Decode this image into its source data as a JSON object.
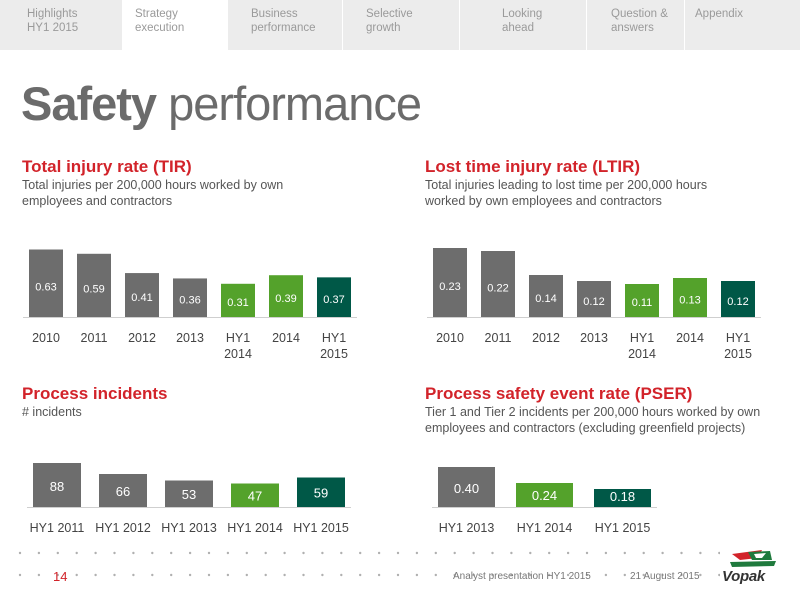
{
  "tabs": [
    {
      "label": "Highlights\nHY1 2015",
      "active": false
    },
    {
      "label": "Strategy\nexecution",
      "active": true
    },
    {
      "label": "Business\nperformance",
      "active": false
    },
    {
      "label": "Selective\ngrowth",
      "active": false
    },
    {
      "label": "Looking\nahead",
      "active": false
    },
    {
      "label": "Question &\nanswers",
      "active": false
    },
    {
      "label": "Appendix",
      "active": false
    }
  ],
  "title": {
    "bold": "Safety",
    "rest": " performance"
  },
  "colors": {
    "grey": "#6d6d6d",
    "green": "#54a22b",
    "teal": "#005847",
    "red": "#d2232a"
  },
  "sections": {
    "tir": {
      "title": "Total injury rate (TIR)",
      "subtitle": "Total injuries per 200,000 hours worked by own employees and contractors"
    },
    "ltir": {
      "title": "Lost time injury rate (LTIR)",
      "subtitle": "Total injuries leading to lost time per 200,000 hours worked by own employees and contractors"
    },
    "pi": {
      "title": "Process incidents",
      "subtitle": "# incidents"
    },
    "pser": {
      "title": "Process safety event rate (PSER)",
      "subtitle": "Tier 1 and Tier 2 incidents per 200,000 hours worked by own employees and contractors (excluding greenfield projects)"
    }
  },
  "chart_data": [
    {
      "id": "tir",
      "type": "bar",
      "categories": [
        "2010",
        "2011",
        "2012",
        "2013",
        "HY1\n2014",
        "2014",
        "HY1\n2015"
      ],
      "values": [
        0.63,
        0.59,
        0.41,
        0.36,
        0.31,
        0.39,
        0.37
      ],
      "labels": [
        "0.63",
        "0.59",
        "0.41",
        "0.36",
        "0.31",
        "0.39",
        "0.37"
      ],
      "colors": [
        "grey",
        "grey",
        "grey",
        "grey",
        "green",
        "green",
        "teal"
      ],
      "ylim": [
        0,
        0.7
      ]
    },
    {
      "id": "ltir",
      "type": "bar",
      "categories": [
        "2010",
        "2011",
        "2012",
        "2013",
        "HY1\n2014",
        "2014",
        "HY1\n2015"
      ],
      "values": [
        0.23,
        0.22,
        0.14,
        0.12,
        0.11,
        0.13,
        0.12
      ],
      "labels": [
        "0.23",
        "0.22",
        "0.14",
        "0.12",
        "0.11",
        "0.13",
        "0.12"
      ],
      "colors": [
        "grey",
        "grey",
        "grey",
        "grey",
        "green",
        "green",
        "teal"
      ],
      "ylim": [
        0,
        0.25
      ]
    },
    {
      "id": "pi",
      "type": "bar",
      "categories": [
        "HY1 2011",
        "HY1 2012",
        "HY1 2013",
        "HY1 2014",
        "HY1 2015"
      ],
      "values": [
        88,
        66,
        53,
        47,
        59
      ],
      "labels": [
        "88",
        "66",
        "53",
        "47",
        "59"
      ],
      "colors": [
        "grey",
        "grey",
        "grey",
        "green",
        "teal"
      ],
      "ylim": [
        0,
        100
      ]
    },
    {
      "id": "pser",
      "type": "bar",
      "categories": [
        "HY1 2013",
        "HY1 2014",
        "HY1 2015"
      ],
      "values": [
        0.4,
        0.24,
        0.18
      ],
      "labels": [
        "0.40",
        "0.24",
        "0.18"
      ],
      "colors": [
        "grey",
        "green",
        "teal"
      ],
      "ylim": [
        0,
        0.45
      ]
    }
  ],
  "footer": {
    "page": "14",
    "presentation": "Analyst presentation HY1 2015",
    "date": "21 August 2015",
    "logo_text": "Vopak"
  }
}
